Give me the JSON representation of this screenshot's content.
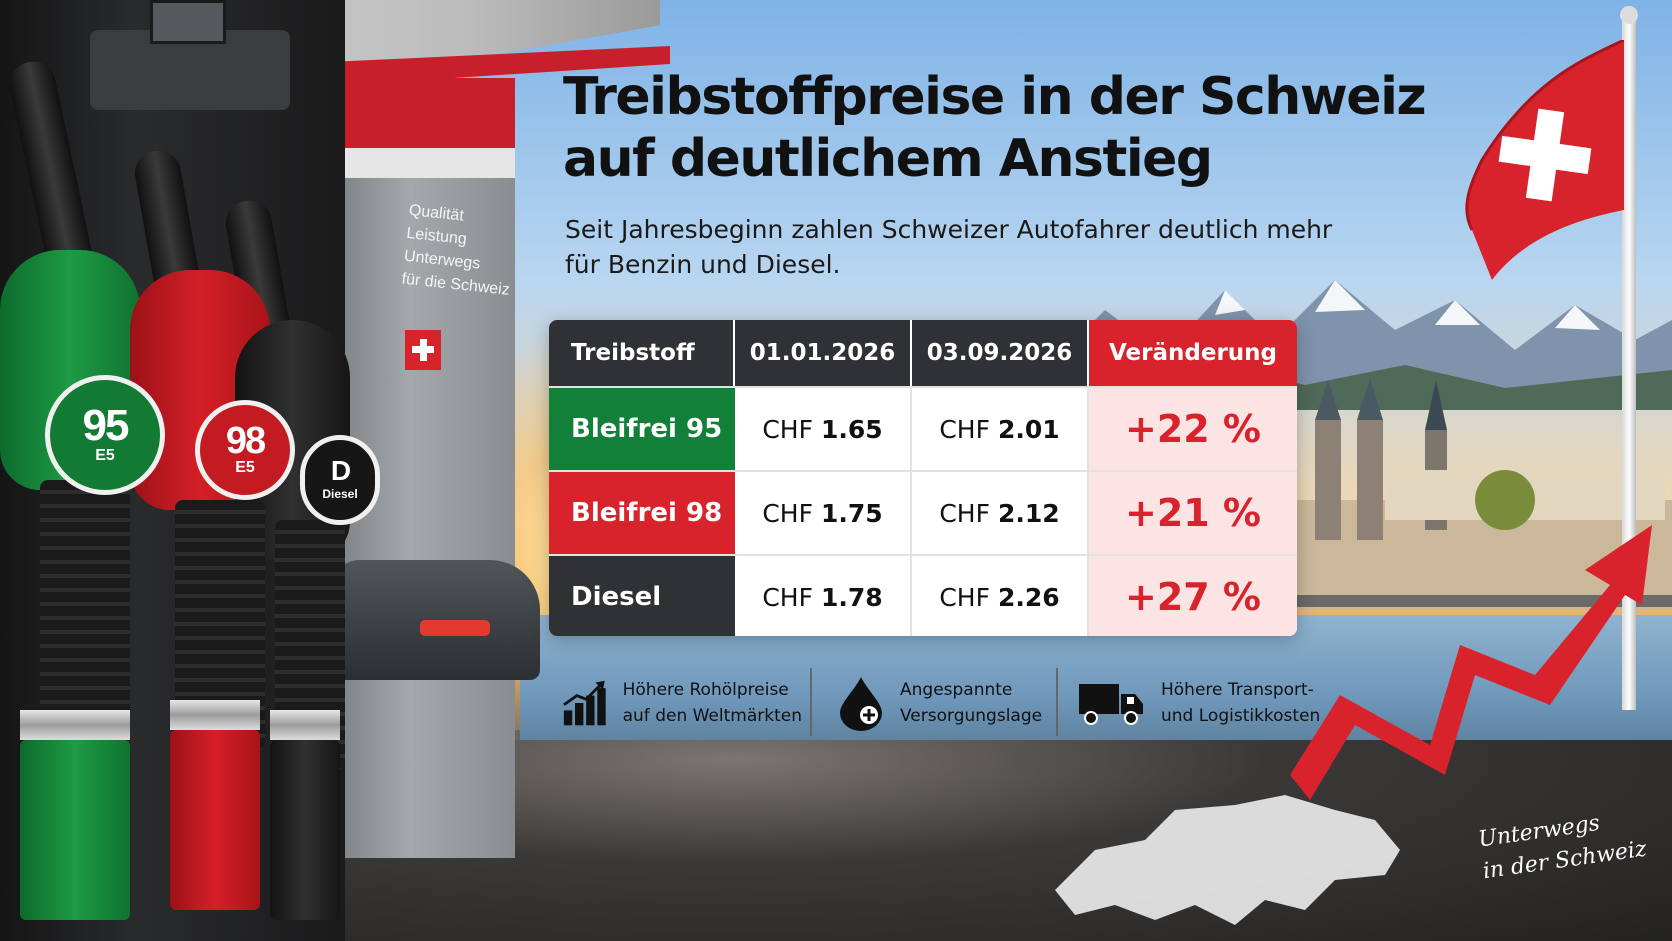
{
  "headline": {
    "line1": "Treibstoffpreise in der Schweiz",
    "line2": "auf deutlichem Anstieg"
  },
  "subtitle": {
    "line1": "Seit Jahresbeginn zahlen Schweizer Autofahrer deutlich mehr",
    "line2": "für Benzin und Diesel."
  },
  "price_table": {
    "headers": [
      "Treibstoff",
      "01.01.2026",
      "03.09.2026",
      "Veränderung"
    ],
    "rows": [
      {
        "fuel": "Bleifrei 95",
        "currency": "CHF",
        "price_start": "1.65",
        "price_end": "2.01",
        "change": "+22 %",
        "color": "#13803a"
      },
      {
        "fuel": "Bleifrei 98",
        "currency": "CHF",
        "price_start": "1.75",
        "price_end": "2.12",
        "change": "+21 %",
        "color": "#d8232d"
      },
      {
        "fuel": "Diesel",
        "currency": "CHF",
        "price_start": "1.78",
        "price_end": "2.26",
        "change": "+27 %",
        "color": "#2f3135"
      }
    ],
    "header_color": "#2f3135",
    "accent_color": "#d8232d",
    "change_bg": "#fde4e4"
  },
  "factors": [
    {
      "icon": "rising-bar-chart-icon",
      "line1": "Höhere Rohölpreise",
      "line2": "auf den Weltmärkten"
    },
    {
      "icon": "oil-drop-icon",
      "line1": "Angespannte",
      "line2": "Versorgungslage"
    },
    {
      "icon": "truck-icon",
      "line1": "Höhere Transport-",
      "line2": "und Logistikkosten"
    }
  ],
  "pump": {
    "nozzles": [
      {
        "grade": "95",
        "sub": "E5",
        "color": "#137a33"
      },
      {
        "grade": "98",
        "sub": "E5",
        "color": "#c41a22"
      },
      {
        "grade": "D",
        "sub": "Diesel",
        "color": "#161616"
      }
    ]
  },
  "station_sign": {
    "lines": [
      "Qualität",
      "Leistung",
      "Unterwegs",
      "für die Schweiz"
    ]
  },
  "signature": {
    "line1": "Unterwegs",
    "line2": "in der Schweiz"
  }
}
